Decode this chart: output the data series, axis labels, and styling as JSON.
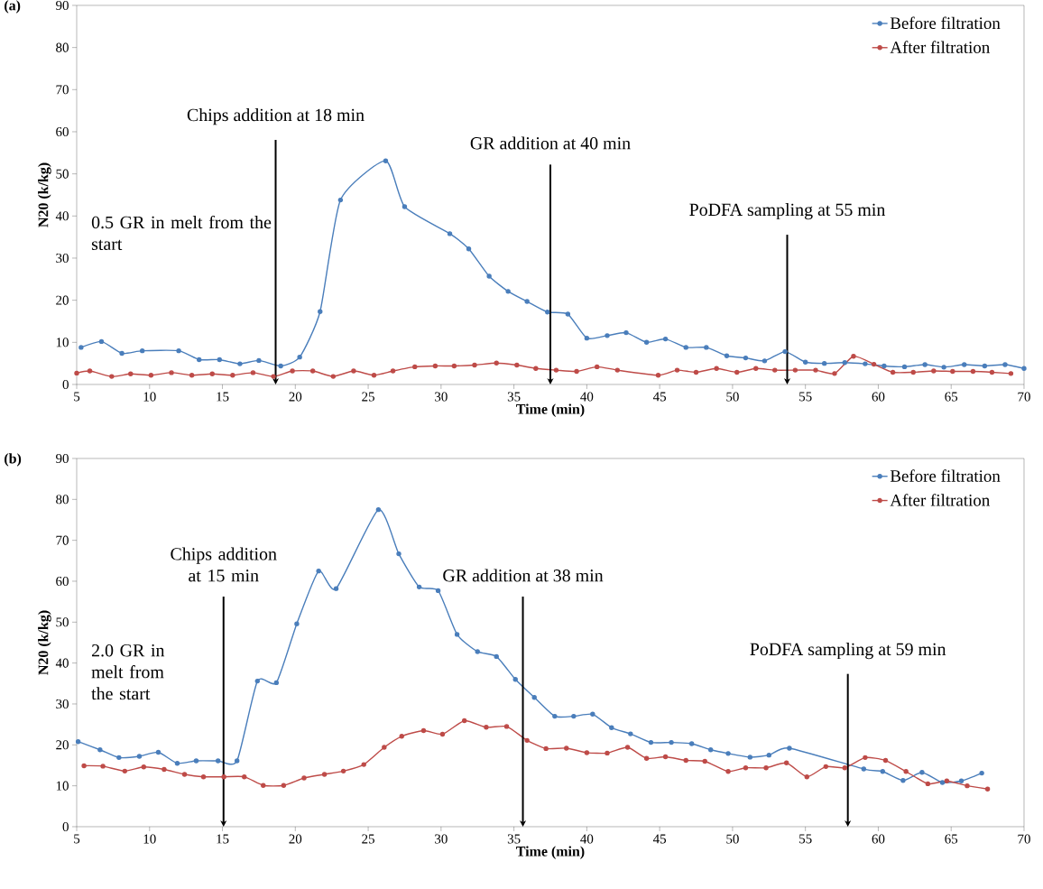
{
  "chart_data": [
    {
      "type": "line",
      "title": "(a)",
      "xlabel": "Time (min)",
      "ylabel": "N20 (k/kg)",
      "xlim": [
        5,
        70
      ],
      "ylim": [
        0,
        90
      ],
      "xticks": [
        5,
        10,
        15,
        20,
        25,
        30,
        35,
        40,
        45,
        50,
        55,
        60,
        65,
        70
      ],
      "yticks": [
        0,
        10,
        20,
        30,
        40,
        50,
        60,
        70,
        80,
        90
      ],
      "legend": "top right",
      "marker": "circle",
      "line_style": "solid",
      "grid": false,
      "series": [
        {
          "name": "Before filtration",
          "color": "#4a7ebb",
          "x": [
            5.3,
            6.7,
            8.1,
            9.5,
            12.0,
            13.4,
            14.8,
            16.2,
            17.5,
            19.0,
            20.3,
            21.7,
            23.1,
            26.2,
            27.5,
            30.6,
            31.9,
            33.3,
            34.6,
            35.9,
            37.3,
            38.7,
            40.0,
            41.4,
            42.7,
            44.1,
            45.4,
            46.8,
            48.2,
            49.6,
            50.9,
            52.2,
            53.6,
            55.0,
            56.3,
            57.7,
            59.1,
            60.4,
            61.8,
            63.2,
            64.5,
            65.9,
            67.3,
            68.7,
            70.0
          ],
          "values": [
            8.8,
            10.2,
            7.4,
            8.0,
            8.0,
            5.9,
            5.9,
            4.9,
            5.7,
            4.4,
            6.5,
            17.3,
            43.8,
            53.1,
            42.2,
            35.8,
            32.2,
            25.7,
            22.1,
            19.7,
            17.2,
            16.7,
            11.0,
            11.6,
            12.3,
            10.0,
            10.8,
            8.8,
            8.8,
            6.8,
            6.3,
            5.6,
            7.8,
            5.3,
            5.0,
            5.2,
            4.9,
            4.4,
            4.2,
            4.7,
            4.1,
            4.7,
            4.4,
            4.7,
            3.8
          ]
        },
        {
          "name": "After filtration",
          "color": "#be4b48",
          "x": [
            5.0,
            5.9,
            7.4,
            8.7,
            10.1,
            11.5,
            12.9,
            14.3,
            15.7,
            17.1,
            18.5,
            19.8,
            21.2,
            22.6,
            24.0,
            25.4,
            26.7,
            28.2,
            29.6,
            30.9,
            32.3,
            33.8,
            35.2,
            36.5,
            37.9,
            39.3,
            40.7,
            42.1,
            44.9,
            46.2,
            47.5,
            48.9,
            50.3,
            51.6,
            52.9,
            54.3,
            55.7,
            57.0,
            58.3,
            59.7,
            61.0,
            62.4,
            63.8,
            65.1,
            66.5,
            67.8,
            69.1
          ],
          "values": [
            2.7,
            3.2,
            1.9,
            2.5,
            2.2,
            2.8,
            2.2,
            2.5,
            2.2,
            2.8,
            1.9,
            3.2,
            3.2,
            1.9,
            3.2,
            2.2,
            3.2,
            4.2,
            4.4,
            4.4,
            4.6,
            5.1,
            4.6,
            3.8,
            3.4,
            3.1,
            4.2,
            3.4,
            2.2,
            3.4,
            2.9,
            3.8,
            2.9,
            3.8,
            3.4,
            3.4,
            3.4,
            2.6,
            6.7,
            4.8,
            2.9,
            2.9,
            3.2,
            3.1,
            3.1,
            2.9,
            2.6
          ]
        }
      ],
      "annotations": [
        "0.5 GR in melt from the start",
        "Chips addition at 18 min",
        "GR addition at 40 min",
        "PoDFA sampling at 55 min"
      ]
    },
    {
      "type": "line",
      "title": "(b)",
      "xlabel": "Time (min)",
      "ylabel": "N20 (k/kg)",
      "xlim": [
        5,
        70
      ],
      "ylim": [
        0,
        90
      ],
      "xticks": [
        5,
        10,
        15,
        20,
        25,
        30,
        35,
        40,
        45,
        50,
        55,
        60,
        65,
        70
      ],
      "yticks": [
        0,
        10,
        20,
        30,
        40,
        50,
        60,
        70,
        80,
        90
      ],
      "legend": "top right",
      "marker": "circle",
      "line_style": "solid",
      "grid": false,
      "series": [
        {
          "name": "Before filtration",
          "color": "#4a7ebb",
          "x": [
            5.1,
            6.6,
            7.9,
            9.3,
            10.6,
            11.9,
            13.2,
            14.7,
            16.0,
            17.4,
            18.7,
            20.1,
            21.6,
            22.8,
            25.7,
            27.1,
            28.5,
            29.8,
            31.1,
            32.5,
            33.8,
            35.1,
            36.4,
            37.8,
            39.1,
            40.4,
            41.7,
            43.0,
            44.4,
            45.8,
            47.2,
            48.5,
            49.7,
            51.2,
            52.5,
            53.9,
            59.0,
            60.3,
            61.7,
            63.0,
            64.4,
            65.7,
            67.1
          ],
          "values": [
            20.8,
            18.8,
            16.9,
            17.2,
            18.2,
            15.5,
            16.1,
            16.1,
            16.1,
            35.6,
            35.2,
            49.6,
            62.5,
            58.2,
            77.5,
            66.7,
            58.6,
            57.7,
            47.0,
            42.8,
            41.6,
            36.0,
            31.6,
            27.0,
            27.0,
            27.5,
            24.2,
            22.7,
            20.6,
            20.6,
            20.3,
            18.8,
            17.9,
            17.0,
            17.5,
            19.2,
            14.1,
            13.5,
            11.3,
            13.3,
            10.8,
            11.2,
            13.1
          ]
        },
        {
          "name": "After filtration",
          "color": "#be4b48",
          "x": [
            5.5,
            6.8,
            8.3,
            9.6,
            11.0,
            12.4,
            13.7,
            15.1,
            16.5,
            17.8,
            19.2,
            20.6,
            22.0,
            23.3,
            24.7,
            26.1,
            27.3,
            28.8,
            30.1,
            31.6,
            33.1,
            34.5,
            35.9,
            37.2,
            38.6,
            40.0,
            41.4,
            42.8,
            44.1,
            45.4,
            46.8,
            48.1,
            49.7,
            50.9,
            52.3,
            53.7,
            55.1,
            56.4,
            57.7,
            59.1,
            60.5,
            61.9,
            63.4,
            64.7,
            66.1,
            67.5
          ],
          "values": [
            14.9,
            14.8,
            13.6,
            14.6,
            14.0,
            12.8,
            12.2,
            12.2,
            12.2,
            10.1,
            10.1,
            11.9,
            12.8,
            13.6,
            15.2,
            19.4,
            22.1,
            23.5,
            22.6,
            25.9,
            24.3,
            24.5,
            21.1,
            19.1,
            19.2,
            18.1,
            18.0,
            19.4,
            16.7,
            17.1,
            16.2,
            16.0,
            13.5,
            14.4,
            14.4,
            15.6,
            12.2,
            14.7,
            14.4,
            16.9,
            16.2,
            13.5,
            10.5,
            11.2,
            10.0,
            9.2
          ]
        }
      ],
      "annotations": [
        "2.0 GR in melt from the start",
        "Chips addition at 15 min",
        "GR addition at 38 min",
        "PoDFA sampling at 59 min"
      ]
    }
  ]
}
